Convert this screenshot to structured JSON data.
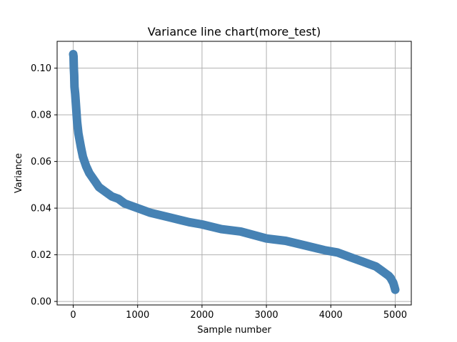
{
  "chart_data": {
    "type": "line",
    "title": "Variance line chart(more_test)",
    "xlabel": "Sample number",
    "ylabel": "Variance",
    "xlim": [
      -250,
      5250
    ],
    "ylim": [
      -0.0015,
      0.1115
    ],
    "xticks": [
      0,
      1000,
      2000,
      3000,
      4000,
      5000
    ],
    "yticks": [
      0.0,
      0.02,
      0.04,
      0.06,
      0.08,
      0.1
    ],
    "xtick_labels": [
      "0",
      "1000",
      "2000",
      "3000",
      "4000",
      "5000"
    ],
    "ytick_labels": [
      "0.00",
      "0.02",
      "0.04",
      "0.06",
      "0.08",
      "0.10"
    ],
    "grid": true,
    "series": [
      {
        "color": "#4682b4",
        "marker": "circle",
        "x": [
          0,
          5,
          10,
          15,
          20,
          30,
          40,
          50,
          60,
          80,
          100,
          120,
          150,
          200,
          250,
          300,
          400,
          500,
          600,
          700,
          800,
          1000,
          1200,
          1500,
          1800,
          2000,
          2300,
          2600,
          3000,
          3300,
          3600,
          3900,
          4100,
          4300,
          4500,
          4600,
          4700,
          4800,
          4850,
          4900,
          4930,
          4950,
          4970,
          4980,
          4990,
          5000
        ],
        "y": [
          0.106,
          0.105,
          0.1,
          0.097,
          0.092,
          0.089,
          0.085,
          0.081,
          0.077,
          0.072,
          0.069,
          0.066,
          0.062,
          0.058,
          0.055,
          0.053,
          0.049,
          0.047,
          0.045,
          0.044,
          0.042,
          0.04,
          0.038,
          0.036,
          0.034,
          0.033,
          0.031,
          0.03,
          0.027,
          0.026,
          0.024,
          0.022,
          0.021,
          0.019,
          0.017,
          0.016,
          0.015,
          0.013,
          0.012,
          0.011,
          0.01,
          0.009,
          0.008,
          0.007,
          0.006,
          0.005
        ]
      }
    ]
  }
}
